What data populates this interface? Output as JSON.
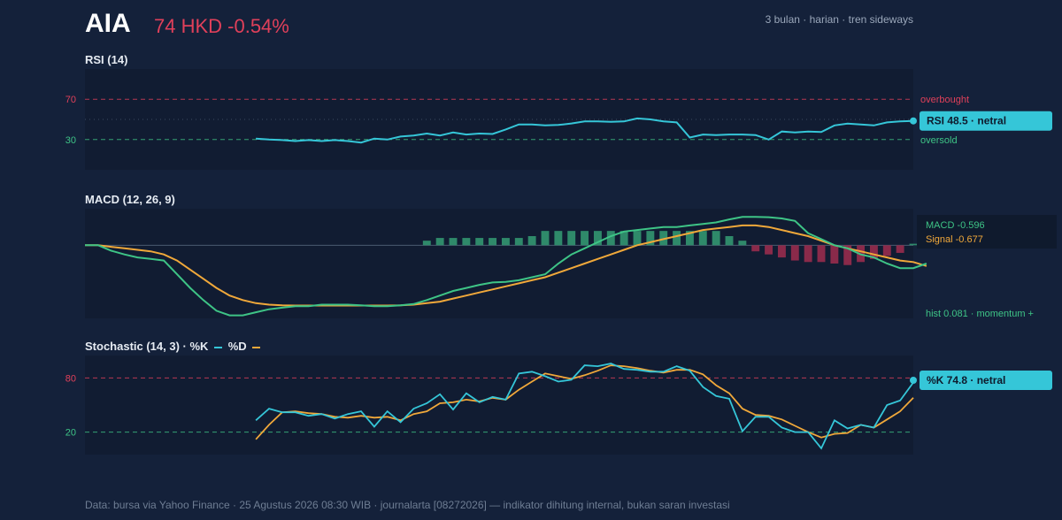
{
  "header": {
    "ticker": "AIA",
    "price": "74 HKD -0.54%",
    "subtitle": "3 bulan · harian · tren sideways"
  },
  "panels": {
    "rsi_title": "RSI (14)",
    "macd_title": "MACD (12, 26, 9)",
    "stoch_title": "Stochastic (14, 3) · %K",
    "stoch_legend_d": "%D"
  },
  "footer": "Data: bursa via Yahoo Finance · 25 Agustus 2026 08:30 WIB · journalarta [08272026] — indikator dihitung internal, bukan saran investasi",
  "colors": {
    "background": "#14213a",
    "panel": "#111c32",
    "cyan": "#35c6d8",
    "green": "#3ec486",
    "orange": "#f0a83a",
    "red": "#e0405a",
    "hist_pos": "#2f8a6a",
    "hist_neg": "#8a2a4a"
  },
  "chart_data": [
    {
      "type": "line",
      "name": "RSI (14)",
      "ylim": [
        0,
        100
      ],
      "yticks": [
        30,
        70
      ],
      "levels": [
        {
          "value": 70,
          "label": "overbought",
          "color": "#e0405a"
        },
        {
          "value": 30,
          "label": "oversold",
          "color": "#3ec486"
        },
        {
          "value": 50,
          "label": "",
          "color": "#5a6a80"
        }
      ],
      "x_count": 64,
      "x": [
        13,
        14,
        15,
        16,
        17,
        18,
        19,
        20,
        21,
        22,
        23,
        24,
        25,
        26,
        27,
        28,
        29,
        30,
        31,
        32,
        33,
        34,
        35,
        36,
        37,
        38,
        39,
        40,
        41,
        42,
        43,
        44,
        45,
        46,
        47,
        48,
        49,
        50,
        51,
        52,
        53,
        54,
        55,
        56,
        57,
        58,
        59,
        60,
        61,
        62,
        63
      ],
      "values": [
        31,
        30,
        29.5,
        28.5,
        29.5,
        28.5,
        29.5,
        28.5,
        27,
        31,
        30,
        33,
        34,
        36,
        34,
        37,
        35,
        36,
        35.5,
        40,
        45,
        45,
        44,
        44.5,
        46,
        48,
        48,
        47.5,
        48,
        51,
        50,
        48,
        47,
        32,
        35,
        34.5,
        35,
        35,
        34.5,
        30,
        38,
        37,
        38,
        37.5,
        44,
        45.8,
        45,
        44,
        47,
        48,
        48.5
      ],
      "label": "RSI 48.5 · netral"
    },
    {
      "type": "line",
      "name": "MACD (12, 26, 9)",
      "ylim": [
        -2.4,
        1.2
      ],
      "x_count": 64,
      "series": [
        {
          "name": "MACD",
          "values": [
            0,
            0,
            -0.18,
            -0.3,
            -0.4,
            -0.45,
            -0.5,
            -0.95,
            -1.4,
            -1.8,
            -2.15,
            -2.3,
            -2.3,
            -2.2,
            -2.1,
            -2.05,
            -2.0,
            -2.0,
            -1.95,
            -1.95,
            -1.95,
            -1.97,
            -2.0,
            -2.0,
            -1.97,
            -1.93,
            -1.8,
            -1.65,
            -1.5,
            -1.4,
            -1.3,
            -1.22,
            -1.2,
            -1.15,
            -1.05,
            -0.95,
            -0.6,
            -0.3,
            -0.1,
            0.1,
            0.3,
            0.45,
            0.5,
            0.55,
            0.6,
            0.6,
            0.65,
            0.7,
            0.75,
            0.85,
            0.93,
            0.93,
            0.92,
            0.88,
            0.8,
            0.4,
            0.2,
            0.0,
            -0.1,
            -0.3,
            -0.4,
            -0.6,
            -0.75,
            -0.75,
            -0.6
          ]
        },
        {
          "name": "Signal",
          "values": [
            0,
            0,
            -0.05,
            -0.1,
            -0.15,
            -0.2,
            -0.3,
            -0.5,
            -0.8,
            -1.1,
            -1.4,
            -1.65,
            -1.8,
            -1.9,
            -1.95,
            -1.97,
            -1.98,
            -1.98,
            -1.98,
            -1.98,
            -1.98,
            -1.98,
            -1.98,
            -1.98,
            -1.97,
            -1.95,
            -1.9,
            -1.85,
            -1.75,
            -1.65,
            -1.55,
            -1.45,
            -1.35,
            -1.25,
            -1.15,
            -1.05,
            -0.9,
            -0.75,
            -0.6,
            -0.45,
            -0.3,
            -0.15,
            0.0,
            0.1,
            0.2,
            0.3,
            0.4,
            0.5,
            0.55,
            0.6,
            0.65,
            0.65,
            0.6,
            0.5,
            0.4,
            0.3,
            0.15,
            0.0,
            -0.1,
            -0.2,
            -0.3,
            -0.4,
            -0.5,
            -0.55,
            -0.68
          ]
        },
        {
          "name": "hist",
          "values": [
            0,
            0,
            0,
            0,
            0,
            0,
            0,
            0,
            0,
            0,
            0,
            0,
            0,
            0,
            0,
            0,
            0,
            0,
            0,
            0,
            0,
            0,
            0,
            0,
            0,
            0,
            0.15,
            0.24,
            0.24,
            0.24,
            0.24,
            0.24,
            0.24,
            0.24,
            0.3,
            0.47,
            0.47,
            0.47,
            0.47,
            0.47,
            0.47,
            0.47,
            0.47,
            0.47,
            0.47,
            0.47,
            0.47,
            0.47,
            0.47,
            0.3,
            0.15,
            -0.2,
            -0.3,
            -0.4,
            -0.5,
            -0.55,
            -0.55,
            -0.6,
            -0.65,
            -0.55,
            -0.45,
            -0.35,
            -0.25,
            0.05,
            0.08
          ]
        }
      ],
      "legend": [
        "MACD -0.596",
        "Signal -0.677"
      ],
      "annotation": "hist 0.081 · momentum +"
    },
    {
      "type": "line",
      "name": "Stochastic (14, 3)",
      "ylim": [
        0,
        100
      ],
      "yticks": [
        20,
        80
      ],
      "levels": [
        {
          "value": 80,
          "color": "#e0405a"
        },
        {
          "value": 20,
          "color": "#3ec486"
        }
      ],
      "x_count": 64,
      "series": [
        {
          "name": "%K",
          "x": [
            13,
            14,
            15,
            16,
            17,
            18,
            19,
            20,
            21,
            22,
            23,
            24,
            25,
            26,
            27,
            28,
            29,
            30,
            31,
            32,
            33,
            34,
            35,
            36,
            37,
            38,
            39,
            40,
            41,
            42,
            43,
            44,
            45,
            46,
            47,
            48,
            49,
            50,
            51,
            52,
            53,
            54,
            55,
            56,
            57,
            58,
            59,
            60,
            61,
            62,
            63
          ],
          "values": [
            33,
            46,
            42,
            42,
            38,
            40,
            35,
            40,
            43,
            26,
            43,
            31,
            46,
            52,
            62,
            45,
            63,
            53,
            59,
            56,
            85,
            87,
            82,
            76,
            78,
            94,
            93,
            96,
            90,
            89,
            87,
            87,
            93,
            88,
            70,
            60,
            57,
            21,
            37,
            37,
            25,
            20,
            20,
            2,
            33,
            24,
            28,
            25,
            50,
            55,
            75
          ]
        },
        {
          "name": "%D",
          "x": [
            13,
            14,
            15,
            16,
            17,
            18,
            19,
            20,
            21,
            22,
            23,
            24,
            25,
            26,
            27,
            28,
            29,
            30,
            31,
            32,
            33,
            34,
            35,
            36,
            37,
            38,
            39,
            40,
            41,
            42,
            43,
            44,
            45,
            46,
            47,
            48,
            49,
            50,
            51,
            52,
            53,
            54,
            55,
            56,
            57,
            58,
            59,
            60,
            61,
            62,
            63
          ],
          "values": [
            12,
            28,
            42,
            43,
            41,
            40,
            37,
            36,
            38,
            36,
            37,
            33,
            40,
            43,
            52,
            53,
            56,
            54,
            58,
            56,
            67,
            76,
            85,
            82,
            79,
            83,
            88,
            94,
            93,
            91,
            88,
            86,
            89,
            89,
            84,
            72,
            63,
            46,
            39,
            38,
            34,
            27,
            20,
            14,
            18,
            19,
            28,
            25,
            34,
            43,
            58
          ]
        }
      ],
      "label": "%K 74.8 · netral"
    }
  ]
}
